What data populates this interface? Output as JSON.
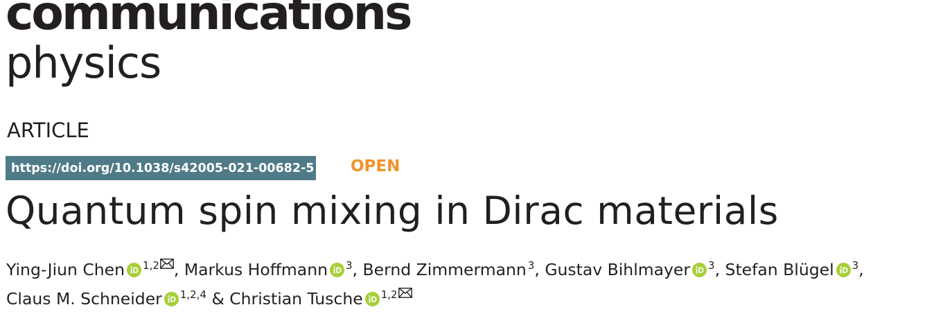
{
  "journal": {
    "name_line1": "communications",
    "name_line2": "physics"
  },
  "article_type": "ARTICLE",
  "doi": "https://doi.org/10.1038/s42005-021-00682-5",
  "access": "OPEN",
  "title": "Quantum spin mixing in Dirac materials",
  "colors": {
    "doi_bg": "#4f7a87",
    "open": "#f0932b",
    "orcid": "#a6ce39",
    "text": "#231f20"
  },
  "authors": [
    {
      "name": "Ying-Jiun Chen",
      "affiliations": "1,2",
      "orcid": true,
      "corresponding": true,
      "sep": ", "
    },
    {
      "name": "Markus Hoffmann",
      "affiliations": "3",
      "orcid": true,
      "corresponding": false,
      "sep": ", "
    },
    {
      "name": "Bernd Zimmermann",
      "affiliations": "3",
      "orcid": false,
      "corresponding": false,
      "sep": ", "
    },
    {
      "name": "Gustav Bihlmayer",
      "affiliations": "3",
      "orcid": true,
      "corresponding": false,
      "sep": ", "
    },
    {
      "name": "Stefan Blügel",
      "affiliations": "3",
      "orcid": true,
      "corresponding": false,
      "sep": ","
    },
    {
      "name": "Claus M. Schneider",
      "affiliations": "1,2,4",
      "orcid": true,
      "corresponding": false,
      "sep": " & "
    },
    {
      "name": "Christian Tusche",
      "affiliations": "1,2",
      "orcid": true,
      "corresponding": true,
      "sep": ""
    }
  ],
  "icons": {
    "orcid": "orcid-icon",
    "mail": "envelope-icon"
  }
}
